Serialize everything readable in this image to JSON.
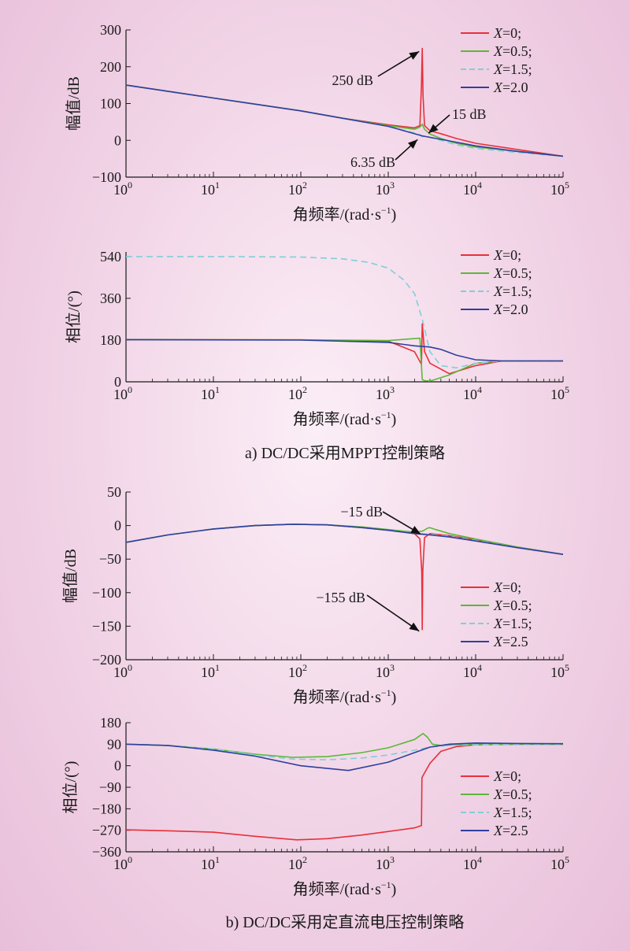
{
  "figure": {
    "captions": [
      "a) DC/DC采用MPPT控制策略",
      "b) DC/DC采用定直流电压控制策略"
    ],
    "colors": {
      "X0": "#e8303a",
      "X05": "#5cb838",
      "X15": "#7fcfd8",
      "Xhigh": "#2f3f9e"
    }
  },
  "chart_data": [
    {
      "type": "line",
      "panel": "a-magnitude",
      "xscale": "log",
      "xlim": [
        1,
        100000
      ],
      "ylim": [
        -100,
        300
      ],
      "yticks": [
        -100,
        0,
        100,
        200,
        300
      ],
      "xlabel": "角频率/(rad·s⁻¹)",
      "ylabel": "幅值/dB",
      "legend": "top-right",
      "series": [
        {
          "name": "X=0;",
          "style": "solid",
          "x": [
            1,
            10,
            100,
            300,
            1000,
            2000,
            2300,
            2400,
            2450,
            2500,
            2600,
            3000,
            4000,
            6000,
            10000,
            30000,
            100000
          ],
          "y": [
            150,
            115,
            80,
            60,
            42,
            34,
            40,
            150,
            250,
            120,
            40,
            26,
            18,
            5,
            -8,
            -25,
            -43
          ]
        },
        {
          "name": "X=0.5;",
          "style": "solid",
          "x": [
            1,
            10,
            100,
            300,
            1000,
            2000,
            2300,
            2450,
            2600,
            3000,
            4000,
            6000,
            10000,
            30000,
            100000
          ],
          "y": [
            150,
            115,
            80,
            60,
            40,
            30,
            36,
            44,
            30,
            17,
            5,
            -8,
            -18,
            -30,
            -43
          ]
        },
        {
          "name": "X=1.5;",
          "style": "dashed",
          "x": [
            1,
            10,
            100,
            300,
            1000,
            2000,
            2300,
            2450,
            2600,
            3000,
            4000,
            6000,
            10000,
            30000,
            100000
          ],
          "y": [
            150,
            115,
            80,
            60,
            38,
            20,
            15,
            10,
            12,
            8,
            0,
            -12,
            -22,
            -33,
            -43
          ]
        },
        {
          "name": "X=2.0",
          "style": "solid",
          "x": [
            1,
            10,
            100,
            300,
            1000,
            2450,
            6000,
            10000,
            30000,
            100000
          ],
          "y": [
            150,
            115,
            80,
            60,
            38,
            12,
            -5,
            -15,
            -30,
            -43
          ]
        }
      ],
      "annotations": [
        "250 dB",
        "15 dB",
        "6.35 dB"
      ]
    },
    {
      "type": "line",
      "panel": "a-phase",
      "xscale": "log",
      "xlim": [
        1,
        100000
      ],
      "ylim": [
        0,
        560
      ],
      "yticks": [
        0,
        180,
        360,
        540
      ],
      "xlabel": "角频率/(rad·s⁻¹)",
      "ylabel": "相位/(°)",
      "legend": "top-right",
      "series": [
        {
          "name": "X=0;",
          "style": "solid",
          "x": [
            1,
            100,
            1000,
            2000,
            2400,
            2450,
            2600,
            3000,
            5000,
            10000,
            20000,
            100000
          ],
          "y": [
            182,
            181,
            175,
            130,
            75,
            250,
            130,
            80,
            35,
            70,
            90,
            90
          ]
        },
        {
          "name": "X=0.5;",
          "style": "solid",
          "x": [
            1,
            100,
            1000,
            2300,
            2450,
            2600,
            3000,
            5000,
            10000,
            20000,
            100000
          ],
          "y": [
            182,
            181,
            178,
            188,
            10,
            5,
            3,
            30,
            80,
            90,
            90
          ]
        },
        {
          "name": "X=1.5;",
          "style": "dashed",
          "x": [
            1,
            10,
            100,
            300,
            600,
            1000,
            1500,
            2000,
            2450,
            3000,
            4000,
            6000,
            10000,
            20000,
            100000
          ],
          "y": [
            540,
            540,
            538,
            530,
            515,
            490,
            440,
            380,
            270,
            130,
            70,
            60,
            80,
            90,
            90
          ]
        },
        {
          "name": "X=2.0",
          "style": "solid",
          "x": [
            1,
            100,
            1000,
            2000,
            3000,
            4000,
            6000,
            10000,
            20000,
            100000
          ],
          "y": [
            182,
            180,
            170,
            155,
            150,
            140,
            115,
            95,
            90,
            90
          ]
        }
      ]
    },
    {
      "type": "line",
      "panel": "b-magnitude",
      "xscale": "log",
      "xlim": [
        1,
        100000
      ],
      "ylim": [
        -200,
        50
      ],
      "yticks": [
        -200,
        -150,
        -100,
        -50,
        0,
        50
      ],
      "xlabel": "角频率/(rad·s⁻¹)",
      "ylabel": "幅值/dB",
      "legend": "bottom-right",
      "series": [
        {
          "name": "X=0;",
          "style": "solid",
          "x": [
            1,
            3,
            10,
            30,
            80,
            200,
            500,
            1000,
            2000,
            2300,
            2420,
            2450,
            2480,
            2600,
            3000,
            5000,
            10000,
            30000,
            100000
          ],
          "y": [
            -25,
            -14,
            -5,
            0,
            2,
            1,
            -3,
            -7,
            -12,
            -20,
            -70,
            -155,
            -70,
            -18,
            -12,
            -15,
            -21,
            -32,
            -43
          ]
        },
        {
          "name": "X=0.5;",
          "style": "solid",
          "x": [
            1,
            3,
            10,
            30,
            80,
            200,
            500,
            1000,
            2000,
            2500,
            2800,
            3000,
            3500,
            5000,
            10000,
            30000,
            100000
          ],
          "y": [
            -25,
            -14,
            -5,
            0,
            2,
            1,
            -2,
            -6,
            -10,
            -8,
            -4,
            -3,
            -6,
            -12,
            -20,
            -32,
            -43
          ]
        },
        {
          "name": "X=1.5;",
          "style": "dashed",
          "x": [
            1,
            3,
            10,
            30,
            80,
            200,
            500,
            1000,
            2000,
            2500,
            3000,
            5000,
            10000,
            30000,
            100000
          ],
          "y": [
            -25,
            -14,
            -5,
            0,
            2,
            1,
            -3,
            -7,
            -11,
            -12,
            -13,
            -16,
            -22,
            -33,
            -43
          ]
        },
        {
          "name": "X=2.5",
          "style": "solid",
          "x": [
            1,
            3,
            10,
            30,
            80,
            200,
            500,
            1000,
            2000,
            3000,
            5000,
            10000,
            30000,
            100000
          ],
          "y": [
            -25,
            -14,
            -5,
            0,
            2,
            1,
            -3,
            -7,
            -12,
            -14,
            -17,
            -23,
            -33,
            -43
          ]
        }
      ],
      "annotations": [
        "−15 dB",
        "−155 dB"
      ]
    },
    {
      "type": "line",
      "panel": "b-phase",
      "xscale": "log",
      "xlim": [
        1,
        100000
      ],
      "ylim": [
        -360,
        180
      ],
      "yticks": [
        -360,
        -270,
        -180,
        -90,
        0,
        90,
        180
      ],
      "xlabel": "角频率/(rad·s⁻¹)",
      "ylabel": "相位/(°)",
      "legend": "bottom-right",
      "series": [
        {
          "name": "X=0;",
          "style": "solid",
          "x": [
            1,
            3,
            10,
            30,
            90,
            200,
            500,
            1000,
            2000,
            2400,
            2430,
            2600,
            3000,
            4000,
            6000,
            10000,
            30000,
            100000
          ],
          "y": [
            -268,
            -272,
            -278,
            -295,
            -310,
            -305,
            -290,
            -275,
            -260,
            -250,
            -50,
            -30,
            10,
            60,
            80,
            88,
            90,
            90
          ]
        },
        {
          "name": "X=0.5;",
          "style": "solid",
          "x": [
            1,
            3,
            10,
            30,
            80,
            200,
            500,
            1000,
            2000,
            2500,
            2800,
            3200,
            4000,
            6000,
            10000,
            30000,
            100000
          ],
          "y": [
            90,
            85,
            70,
            48,
            35,
            38,
            55,
            75,
            110,
            135,
            120,
            90,
            85,
            88,
            90,
            90,
            90
          ]
        },
        {
          "name": "X=1.5;",
          "style": "dashed",
          "x": [
            1,
            3,
            10,
            30,
            80,
            200,
            500,
            1000,
            2000,
            3000,
            5000,
            10000,
            30000,
            100000
          ],
          "y": [
            90,
            85,
            70,
            45,
            28,
            25,
            32,
            45,
            65,
            78,
            85,
            88,
            90,
            90
          ]
        },
        {
          "name": "X=2.5",
          "style": "solid",
          "x": [
            1,
            3,
            10,
            30,
            100,
            350,
            1000,
            2000,
            3000,
            5000,
            10000,
            30000,
            100000
          ],
          "y": [
            90,
            85,
            65,
            40,
            0,
            -20,
            15,
            55,
            78,
            90,
            95,
            93,
            92
          ]
        }
      ]
    }
  ]
}
